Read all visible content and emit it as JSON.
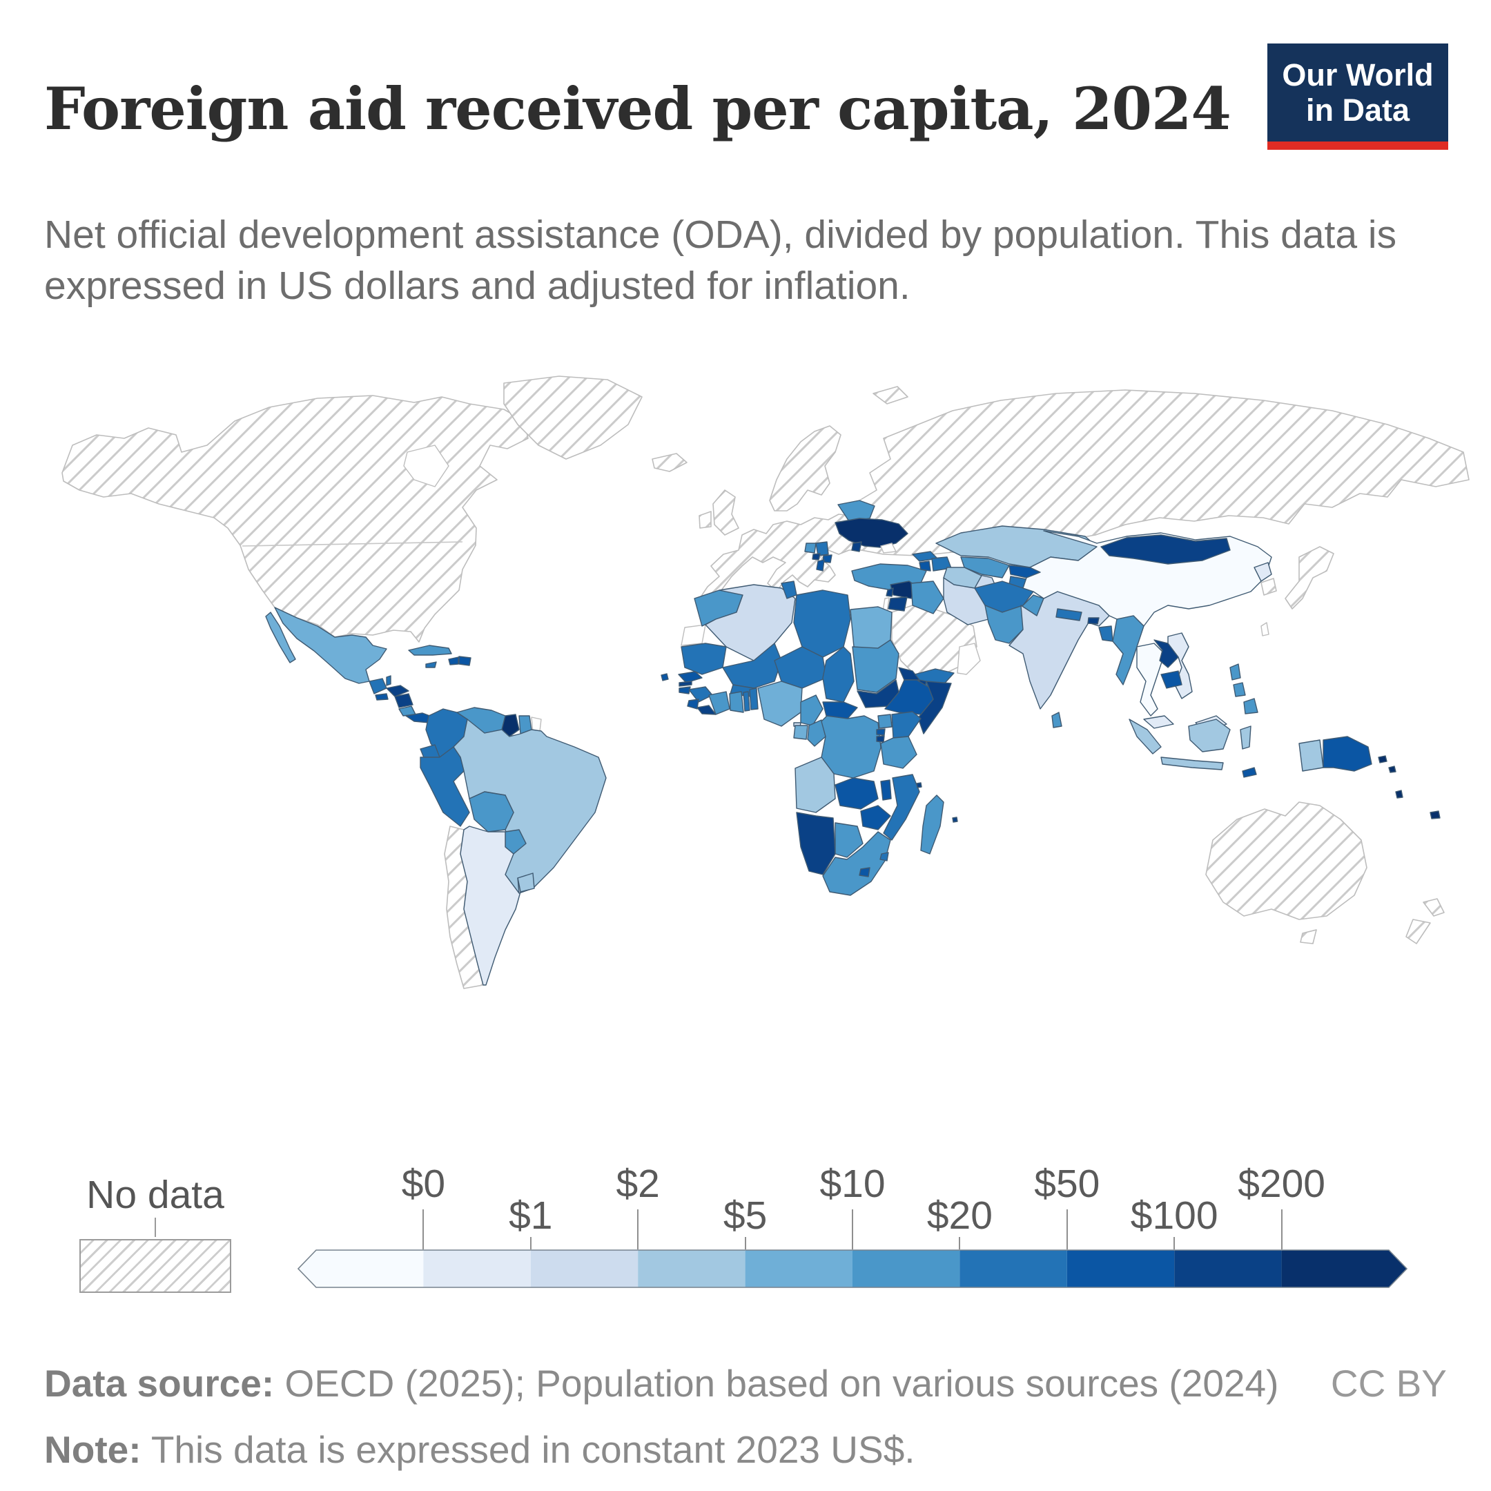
{
  "header": {
    "title": "Foreign aid received per capita, 2024",
    "logo_line1": "Our World",
    "logo_line2": "in Data",
    "logo_bg": "#15335b",
    "logo_red": "#e02c24"
  },
  "subtitle": "Net official development assistance (ODA), divided by population. This data is expressed in US dollars and adjusted for inflation.",
  "legend": {
    "no_data_label": "No data",
    "ticks": [
      "$0",
      "$1",
      "$2",
      "$5",
      "$10",
      "$20",
      "$50",
      "$100",
      "$200"
    ]
  },
  "footer": {
    "source_label": "Data source:",
    "source_text": " OECD (2025); Population based on various sources (2024)",
    "license": "CC BY",
    "note_label": "Note:",
    "note_text": " This data is expressed in constant 2023 US$."
  },
  "chart_data": {
    "type": "choropleth-map",
    "title": "Foreign aid received per capita, 2024",
    "unit": "net ODA received per capita, constant 2023 US$",
    "year": 2024,
    "legend_position": "bottom",
    "ocean_color": "#ffffff",
    "no_data_pattern": "diagonal-hatch",
    "bands": [
      {
        "label": "<$0",
        "color": "#f7fbff"
      },
      {
        "label": "$0-$1",
        "color": "#e1eaf6"
      },
      {
        "label": "$1-$2",
        "color": "#cddcee"
      },
      {
        "label": "$2-$5",
        "color": "#a2c8e1"
      },
      {
        "label": "$5-$10",
        "color": "#6fafd7"
      },
      {
        "label": "$10-$20",
        "color": "#4a97c9"
      },
      {
        "label": "$20-$50",
        "color": "#2373b6"
      },
      {
        "label": "$50-$100",
        "color": "#0b56a4"
      },
      {
        "label": "$100-$200",
        "color": "#0a4186"
      },
      {
        "label": ">$200",
        "color": "#08306b"
      }
    ],
    "countries": {
      "Mexico": 4,
      "Guatemala": 6,
      "Belize": 6,
      "Honduras": 8,
      "El Salvador": 7,
      "Nicaragua": 8,
      "Costa Rica": 5,
      "Panama": 7,
      "Cuba": 5,
      "Jamaica": 6,
      "Haiti": 7,
      "Dominican Republic": 7,
      "Colombia": 6,
      "Venezuela": 5,
      "Guyana": 9,
      "Suriname": 5,
      "Ecuador": 6,
      "Peru": 6,
      "Bolivia": 5,
      "Brazil": 3,
      "Paraguay": 5,
      "Uruguay": 3,
      "Argentina": 1,
      "Belarus": 5,
      "Ukraine": 9,
      "Moldova": 8,
      "Serbia": 6,
      "Bosnia and Herzegovina": 5,
      "Montenegro": 8,
      "Albania": 7,
      "North Macedonia": 7,
      "Turkey": 5,
      "Georgia": 6,
      "Armenia": 7,
      "Azerbaijan": 6,
      "Syria": 9,
      "Lebanon": 8,
      "Jordan": 8,
      "Iraq": 5,
      "Iran": 2,
      "Yemen": 6,
      "Morocco": 5,
      "Algeria": 2,
      "Tunisia": 6,
      "Libya": 6,
      "Egypt": 4,
      "Mauritania": 6,
      "Mali": 6,
      "Burkina Faso": 6,
      "Niger": 6,
      "Chad": 6,
      "Sudan": 5,
      "South Sudan": 8,
      "Eritrea": 8,
      "Djibouti": 8,
      "Ethiopia": 7,
      "Somalia": 8,
      "Senegal": 7,
      "Gambia": 8,
      "Guinea-Bissau": 7,
      "Guinea": 6,
      "Sierra Leone": 7,
      "Liberia": 8,
      "Cote d'Ivoire": 5,
      "Ghana": 5,
      "Togo": 6,
      "Benin": 6,
      "Nigeria": 4,
      "Cameroon": 5,
      "Central African Republic": 7,
      "Equatorial Guinea": 2,
      "Gabon": 4,
      "Congo": 5,
      "Democratic Republic of Congo": 5,
      "Uganda": 5,
      "Kenya": 6,
      "Rwanda": 7,
      "Burundi": 8,
      "Tanzania": 5,
      "Angola": 3,
      "Zambia": 7,
      "Malawi": 7,
      "Mozambique": 6,
      "Zimbabwe": 7,
      "Namibia": 8,
      "Botswana": 5,
      "South Africa": 5,
      "Lesotho": 7,
      "Eswatini": 6,
      "Madagascar": 5,
      "Cape Verde": 7,
      "Comoros": 8,
      "Mauritius": 8,
      "Kazakhstan": 3,
      "Uzbekistan": 5,
      "Turkmenistan": 3,
      "Kyrgyzstan": 7,
      "Tajikistan": 6,
      "Afghanistan": 6,
      "Pakistan": 5,
      "India": 2,
      "Nepal": 6,
      "Bhutan": 8,
      "Bangladesh": 6,
      "Sri Lanka": 5,
      "China": 0,
      "Mongolia": 8,
      "North Korea": 1,
      "Myanmar": 5,
      "Thailand": 0,
      "Laos": 8,
      "Cambodia": 7,
      "Vietnam": 1,
      "Malaysia": 1,
      "Indonesia": 3,
      "Timor-Leste": 7,
      "Philippines": 5,
      "Papua New Guinea": 7,
      "Solomon Islands": 9,
      "Vanuatu": 9,
      "Fiji": 9
    },
    "no_data": [
      "United States",
      "Canada",
      "Greenland",
      "Iceland",
      "Western and Northern Europe",
      "Russia",
      "Saudi Arabia",
      "Japan",
      "South Korea",
      "Australia",
      "New Zealand",
      "Chile",
      "Svalbard"
    ]
  }
}
